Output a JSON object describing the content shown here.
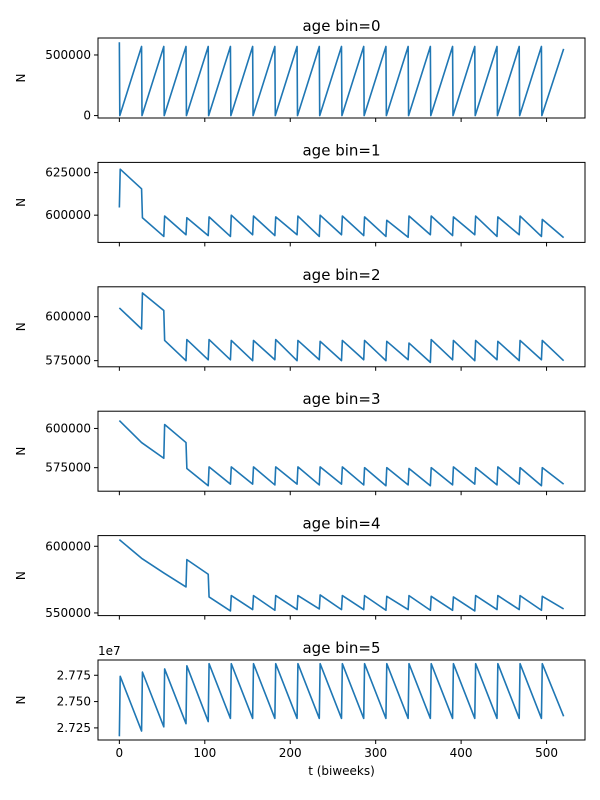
{
  "chart_data": [
    {
      "type": "line",
      "title": "age bin=0",
      "ylabel": "N",
      "xlabel": "",
      "xlim": [
        -25,
        545
      ],
      "ylim": [
        -20000,
        640000
      ],
      "yticks": [
        0,
        500000
      ],
      "ytick_labels": [
        "0",
        "500000"
      ],
      "multiplier": "",
      "x": [
        0,
        0.5,
        26,
        26.5,
        52,
        52.5,
        78,
        78.5,
        104,
        104.5,
        130,
        130.5,
        156,
        156.5,
        182,
        182.5,
        208,
        208.5,
        234,
        234.5,
        260,
        260.5,
        286,
        286.5,
        312,
        312.5,
        338,
        338.5,
        364,
        364.5,
        390,
        390.5,
        416,
        416.5,
        442,
        442.5,
        468,
        468.5,
        494,
        494.5,
        520
      ],
      "y": [
        605000,
        0,
        570000,
        0,
        570000,
        0,
        570000,
        0,
        570000,
        0,
        570000,
        0,
        570000,
        0,
        570000,
        0,
        570000,
        0,
        570000,
        0,
        570000,
        0,
        570000,
        0,
        570000,
        0,
        570000,
        0,
        570000,
        0,
        570000,
        0,
        570000,
        0,
        570000,
        0,
        570000,
        0,
        570000,
        0,
        550000
      ]
    },
    {
      "type": "line",
      "title": "age bin=1",
      "ylabel": "N",
      "xlabel": "",
      "xlim": [
        -25,
        545
      ],
      "ylim": [
        584000,
        631000
      ],
      "yticks": [
        600000,
        625000
      ],
      "ytick_labels": [
        "600000",
        "625000"
      ],
      "multiplier": "",
      "x": [
        0,
        1,
        26,
        27,
        52,
        53,
        78,
        79,
        104,
        105,
        130,
        131,
        156,
        157,
        182,
        183,
        208,
        209,
        234,
        235,
        260,
        261,
        286,
        287,
        312,
        313,
        338,
        339,
        364,
        365,
        390,
        391,
        416,
        417,
        442,
        443,
        468,
        469,
        494,
        495,
        520
      ],
      "y": [
        604500,
        627000,
        615500,
        598500,
        587500,
        599500,
        588500,
        598500,
        588000,
        599000,
        587500,
        600000,
        588500,
        599500,
        588000,
        599000,
        588500,
        599500,
        587500,
        600000,
        588500,
        599500,
        588000,
        599000,
        587500,
        597000,
        587000,
        599500,
        588500,
        599500,
        588000,
        599000,
        588500,
        599500,
        587500,
        599000,
        588500,
        599500,
        587500,
        597500,
        586800
      ]
    },
    {
      "type": "line",
      "title": "age bin=2",
      "ylabel": "N",
      "xlabel": "",
      "xlim": [
        -25,
        545
      ],
      "ylim": [
        571500,
        617000
      ],
      "yticks": [
        575000,
        600000
      ],
      "ytick_labels": [
        "575000",
        "600000"
      ],
      "multiplier": "",
      "x": [
        0,
        26,
        27,
        52,
        53,
        78,
        79,
        104,
        105,
        130,
        131,
        156,
        157,
        182,
        183,
        208,
        209,
        234,
        235,
        260,
        261,
        286,
        287,
        312,
        313,
        338,
        339,
        364,
        365,
        390,
        391,
        416,
        417,
        442,
        443,
        468,
        469,
        494,
        495,
        520
      ],
      "y": [
        605000,
        593000,
        613500,
        603500,
        586500,
        575000,
        587000,
        575500,
        587000,
        575500,
        586500,
        575000,
        586500,
        575500,
        587000,
        575000,
        586500,
        575500,
        586000,
        575000,
        586500,
        575500,
        586500,
        575000,
        586000,
        575500,
        585000,
        574000,
        587000,
        575500,
        586500,
        575000,
        586500,
        575500,
        586000,
        575000,
        586500,
        575500,
        586500,
        575000
      ]
    },
    {
      "type": "line",
      "title": "age bin=3",
      "ylabel": "N",
      "xlabel": "",
      "xlim": [
        -25,
        545
      ],
      "ylim": [
        560000,
        611000
      ],
      "yticks": [
        575000,
        600000
      ],
      "ytick_labels": [
        "575000",
        "600000"
      ],
      "multiplier": "",
      "x": [
        0,
        26,
        52,
        53,
        78,
        79,
        104,
        105,
        130,
        131,
        156,
        157,
        182,
        183,
        208,
        209,
        234,
        235,
        260,
        261,
        286,
        287,
        312,
        313,
        338,
        339,
        364,
        365,
        390,
        391,
        416,
        417,
        442,
        443,
        468,
        469,
        494,
        495,
        520
      ],
      "y": [
        605000,
        591000,
        581000,
        602500,
        591000,
        574500,
        563500,
        575500,
        564500,
        575500,
        564500,
        575500,
        564000,
        575500,
        564500,
        575500,
        564000,
        575500,
        564500,
        575500,
        564000,
        575000,
        563500,
        575000,
        564000,
        574500,
        563500,
        575000,
        564000,
        575500,
        564500,
        575000,
        564000,
        575500,
        564500,
        575000,
        563500,
        575000,
        564500
      ]
    },
    {
      "type": "line",
      "title": "age bin=4",
      "ylabel": "N",
      "xlabel": "",
      "xlim": [
        -25,
        545
      ],
      "ylim": [
        548000,
        608000
      ],
      "yticks": [
        550000,
        600000
      ],
      "ytick_labels": [
        "550000",
        "600000"
      ],
      "multiplier": "",
      "x": [
        0,
        26,
        52,
        78,
        79,
        104,
        105,
        130,
        131,
        156,
        157,
        182,
        183,
        208,
        209,
        234,
        235,
        260,
        261,
        286,
        287,
        312,
        313,
        338,
        339,
        364,
        365,
        390,
        391,
        416,
        417,
        442,
        443,
        468,
        469,
        494,
        495,
        520
      ],
      "y": [
        605000,
        591000,
        580000,
        569500,
        590000,
        579000,
        562000,
        551500,
        563000,
        552500,
        563000,
        552000,
        563000,
        552500,
        563000,
        553000,
        563500,
        552500,
        563000,
        552500,
        563000,
        552000,
        562500,
        552500,
        563000,
        552000,
        562500,
        552000,
        562000,
        551500,
        563000,
        552500,
        563000,
        552500,
        563000,
        552000,
        562500,
        553000
      ]
    },
    {
      "type": "line",
      "title": "age bin=5",
      "ylabel": "N",
      "xlabel": "t (biweeks)",
      "xlim": [
        -25,
        545
      ],
      "ylim": [
        2.7135,
        2.7895
      ],
      "yticks": [
        2.725,
        2.75,
        2.775
      ],
      "ytick_labels": [
        "2.725",
        "2.750",
        "2.775"
      ],
      "multiplier": "1e7",
      "x": [
        0,
        1,
        26,
        27,
        52,
        53,
        78,
        79,
        104,
        105,
        130,
        131,
        156,
        157,
        182,
        183,
        208,
        209,
        234,
        235,
        260,
        261,
        286,
        287,
        312,
        313,
        338,
        339,
        364,
        365,
        390,
        391,
        416,
        417,
        442,
        443,
        468,
        469,
        494,
        495,
        520
      ],
      "y": [
        2.717,
        2.774,
        2.722,
        2.778,
        2.726,
        2.781,
        2.729,
        2.784,
        2.731,
        2.786,
        2.734,
        2.786,
        2.734,
        2.786,
        2.734,
        2.786,
        2.734,
        2.786,
        2.734,
        2.786,
        2.734,
        2.786,
        2.734,
        2.786,
        2.734,
        2.786,
        2.734,
        2.786,
        2.734,
        2.786,
        2.734,
        2.786,
        2.734,
        2.786,
        2.734,
        2.786,
        2.734,
        2.786,
        2.734,
        2.786,
        2.736
      ]
    }
  ],
  "xaxis": {
    "ticks": [
      0,
      100,
      200,
      300,
      400,
      500
    ],
    "tick_labels": [
      "0",
      "100",
      "200",
      "300",
      "400",
      "500"
    ]
  },
  "style": {
    "line_color": "#1f77b4",
    "background": "#ffffff"
  }
}
